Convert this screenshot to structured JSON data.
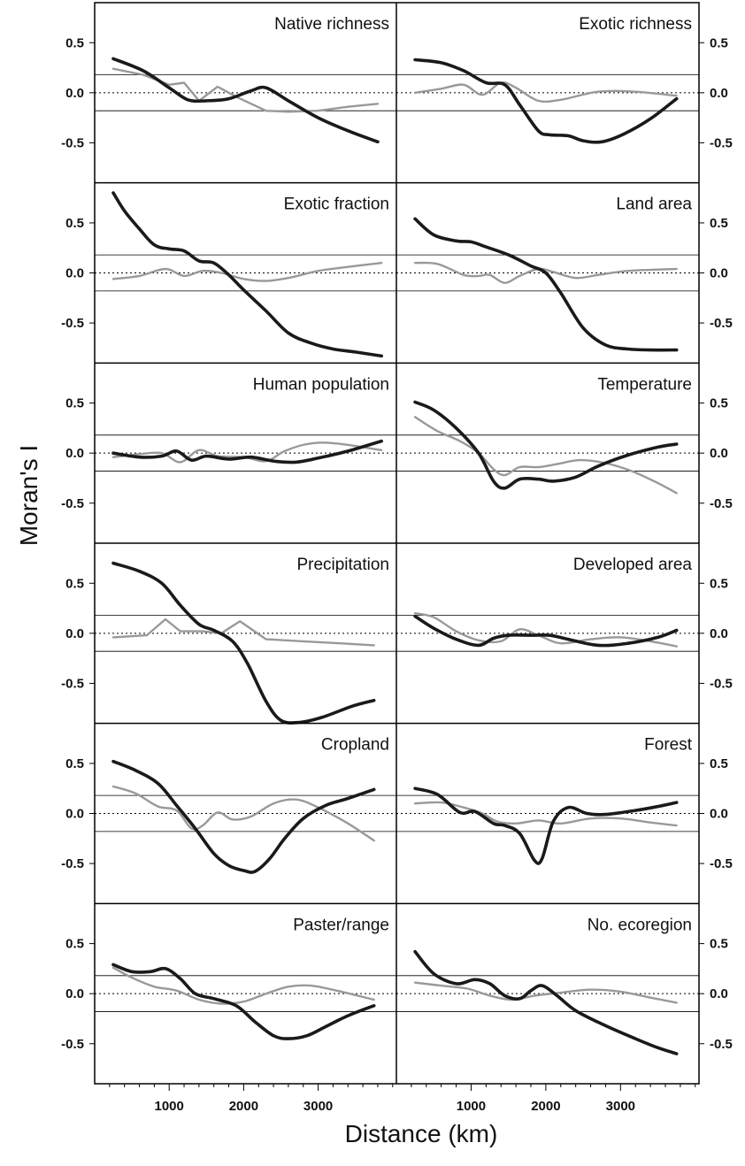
{
  "ylabel": "Moran's I",
  "xlabel": "Distance (km)",
  "x_ticks": [
    1000,
    2000,
    3000
  ],
  "y_ticks": [
    "0.5",
    "0.0",
    "-0.5"
  ],
  "colors": {
    "series_dark": "#1a1a1a",
    "series_gray": "#999999",
    "frame": "#000000"
  },
  "chart_data": {
    "type": "line",
    "layout": "small-multiples 6x2",
    "xlabel": "Distance (km)",
    "ylabel": "Moran's I",
    "xlim": [
      0,
      4050
    ],
    "ylim": [
      -0.9,
      0.9
    ],
    "x_ticks": [
      1000,
      2000,
      3000
    ],
    "y_ticks": [
      0.5,
      0.0,
      -0.5
    ],
    "reference_lines": {
      "dotted_at": 0.0,
      "solid_at": [
        0.18,
        -0.18
      ]
    },
    "grid": false,
    "legend": "none",
    "panels": [
      {
        "title": "Native richness",
        "series": [
          {
            "color": "dark",
            "x": [
              250,
              650,
              1000,
              1250,
              1500,
              1800,
              2100,
              2300,
              2600,
              3000,
              3400,
              3800
            ],
            "y": [
              0.34,
              0.22,
              0.05,
              -0.07,
              -0.08,
              -0.06,
              0.02,
              0.05,
              -0.08,
              -0.25,
              -0.38,
              -0.49
            ]
          },
          {
            "color": "gray",
            "smooth": false,
            "x": [
              250,
              650,
              1000,
              1200,
              1400,
              1650,
              1900,
              2300,
              2600,
              3000,
              3400,
              3800
            ],
            "y": [
              0.24,
              0.18,
              0.08,
              0.1,
              -0.08,
              0.06,
              -0.04,
              -0.18,
              -0.19,
              -0.18,
              -0.14,
              -0.11
            ]
          }
        ]
      },
      {
        "title": "Exotic richness",
        "series": [
          {
            "color": "dark",
            "x": [
              250,
              600,
              900,
              1200,
              1450,
              1650,
              1900,
              2050,
              2300,
              2500,
              2750,
              3050,
              3400,
              3750
            ],
            "y": [
              0.33,
              0.3,
              0.22,
              0.1,
              0.08,
              -0.12,
              -0.38,
              -0.42,
              -0.43,
              -0.48,
              -0.49,
              -0.41,
              -0.26,
              -0.06
            ]
          },
          {
            "color": "gray",
            "x": [
              250,
              600,
              900,
              1150,
              1400,
              1600,
              1900,
              2200,
              2700,
              3200,
              3750
            ],
            "y": [
              0.0,
              0.04,
              0.08,
              -0.02,
              0.1,
              0.05,
              -0.08,
              -0.07,
              0.01,
              0.01,
              -0.03
            ]
          }
        ]
      },
      {
        "title": "Exotic fraction",
        "series": [
          {
            "color": "dark",
            "x": [
              250,
              400,
              600,
              800,
              1000,
              1200,
              1400,
              1600,
              1800,
              2000,
              2300,
              2600,
              2900,
              3200,
              3500,
              3850
            ],
            "y": [
              0.8,
              0.62,
              0.44,
              0.28,
              0.24,
              0.22,
              0.12,
              0.1,
              -0.02,
              -0.17,
              -0.38,
              -0.6,
              -0.7,
              -0.76,
              -0.79,
              -0.83
            ]
          },
          {
            "color": "gray",
            "x": [
              250,
              600,
              950,
              1200,
              1450,
              1700,
              2000,
              2300,
              2600,
              3000,
              3400,
              3850
            ],
            "y": [
              -0.06,
              -0.03,
              0.04,
              -0.03,
              0.02,
              0.0,
              -0.06,
              -0.08,
              -0.05,
              0.02,
              0.06,
              0.1
            ]
          }
        ]
      },
      {
        "title": "Land area",
        "series": [
          {
            "color": "dark",
            "x": [
              250,
              500,
              800,
              1000,
              1200,
              1500,
              1800,
              2000,
              2200,
              2500,
              2800,
              3100,
              3400,
              3750
            ],
            "y": [
              0.54,
              0.38,
              0.32,
              0.31,
              0.26,
              0.18,
              0.07,
              0.0,
              -0.2,
              -0.55,
              -0.72,
              -0.76,
              -0.77,
              -0.77
            ]
          },
          {
            "color": "gray",
            "x": [
              250,
              550,
              900,
              1100,
              1250,
              1450,
              1650,
              1900,
              2100,
              2400,
              2700,
              3100,
              3750
            ],
            "y": [
              0.1,
              0.09,
              -0.02,
              -0.03,
              -0.02,
              -0.1,
              -0.03,
              0.04,
              0.01,
              -0.05,
              -0.02,
              0.02,
              0.04
            ]
          }
        ]
      },
      {
        "title": "Human population",
        "series": [
          {
            "color": "dark",
            "x": [
              250,
              600,
              900,
              1100,
              1300,
              1500,
              1800,
              2100,
              2400,
              2700,
              3000,
              3400,
              3850
            ],
            "y": [
              0.0,
              -0.04,
              -0.03,
              0.02,
              -0.07,
              -0.03,
              -0.06,
              -0.04,
              -0.08,
              -0.09,
              -0.05,
              0.02,
              0.12
            ]
          },
          {
            "color": "gray",
            "x": [
              250,
              600,
              900,
              1150,
              1400,
              1650,
              2000,
              2300,
              2550,
              2850,
              3200,
              3850
            ],
            "y": [
              -0.04,
              -0.01,
              0.0,
              -0.09,
              0.03,
              -0.03,
              -0.04,
              -0.08,
              0.02,
              0.09,
              0.1,
              0.03
            ]
          }
        ]
      },
      {
        "title": "Temperature",
        "series": [
          {
            "color": "dark",
            "x": [
              250,
              500,
              800,
              1100,
              1300,
              1450,
              1650,
              1900,
              2100,
              2400,
              2700,
              3100,
              3500,
              3750
            ],
            "y": [
              0.51,
              0.43,
              0.25,
              0.0,
              -0.28,
              -0.35,
              -0.26,
              -0.26,
              -0.28,
              -0.24,
              -0.13,
              -0.02,
              0.06,
              0.09
            ]
          },
          {
            "color": "gray",
            "x": [
              250,
              550,
              850,
              1100,
              1300,
              1450,
              1650,
              1900,
              2150,
              2450,
              2800,
              3150,
              3500,
              3750
            ],
            "y": [
              0.36,
              0.22,
              0.12,
              0.0,
              -0.16,
              -0.22,
              -0.14,
              -0.14,
              -0.11,
              -0.07,
              -0.1,
              -0.18,
              -0.3,
              -0.4
            ]
          }
        ]
      },
      {
        "title": "Precipitation",
        "series": [
          {
            "color": "dark",
            "x": [
              250,
              600,
              900,
              1150,
              1400,
              1600,
              1850,
              2050,
              2300,
              2500,
              2750,
              3050,
              3450,
              3750
            ],
            "y": [
              0.7,
              0.62,
              0.5,
              0.28,
              0.09,
              0.03,
              -0.08,
              -0.3,
              -0.68,
              -0.87,
              -0.89,
              -0.84,
              -0.73,
              -0.67
            ]
          },
          {
            "color": "gray",
            "smooth": false,
            "x": [
              250,
              700,
              950,
              1150,
              1450,
              1700,
              1950,
              2300,
              2800,
              3300,
              3750
            ],
            "y": [
              -0.04,
              -0.02,
              0.14,
              0.02,
              0.02,
              0.0,
              0.12,
              -0.06,
              -0.08,
              -0.1,
              -0.12
            ]
          }
        ]
      },
      {
        "title": "Developed area",
        "series": [
          {
            "color": "dark",
            "x": [
              250,
              500,
              800,
              1100,
              1300,
              1500,
              1800,
              2050,
              2300,
              2700,
              3100,
              3500,
              3750
            ],
            "y": [
              0.17,
              0.05,
              -0.06,
              -0.12,
              -0.05,
              -0.02,
              -0.02,
              -0.02,
              -0.06,
              -0.12,
              -0.1,
              -0.04,
              0.03
            ]
          },
          {
            "color": "gray",
            "x": [
              250,
              500,
              800,
              1100,
              1400,
              1650,
              1900,
              2200,
              2600,
              3000,
              3400,
              3750
            ],
            "y": [
              0.2,
              0.16,
              0.02,
              -0.07,
              -0.08,
              0.04,
              -0.02,
              -0.1,
              -0.06,
              -0.04,
              -0.08,
              -0.13
            ]
          }
        ]
      },
      {
        "title": "Cropland",
        "series": [
          {
            "color": "dark",
            "x": [
              250,
              550,
              850,
              1100,
              1350,
              1600,
              1800,
              2000,
              2150,
              2350,
              2550,
              2800,
              3100,
              3400,
              3750
            ],
            "y": [
              0.52,
              0.43,
              0.3,
              0.08,
              -0.15,
              -0.4,
              -0.52,
              -0.57,
              -0.58,
              -0.45,
              -0.25,
              -0.05,
              0.08,
              0.15,
              0.24
            ]
          },
          {
            "color": "gray",
            "x": [
              250,
              550,
              850,
              1100,
              1300,
              1450,
              1650,
              1850,
              2100,
              2400,
              2700,
              3000,
              3400,
              3750
            ],
            "y": [
              0.27,
              0.2,
              0.07,
              0.03,
              -0.15,
              -0.12,
              0.01,
              -0.06,
              -0.03,
              0.1,
              0.14,
              0.06,
              -0.1,
              -0.27
            ]
          }
        ]
      },
      {
        "title": "Forest",
        "series": [
          {
            "color": "dark",
            "x": [
              250,
              550,
              850,
              1050,
              1300,
              1450,
              1650,
              1850,
              1950,
              2100,
              2300,
              2550,
              2800,
              3200,
              3500,
              3750
            ],
            "y": [
              0.25,
              0.19,
              0.01,
              0.02,
              -0.1,
              -0.12,
              -0.2,
              -0.47,
              -0.45,
              -0.08,
              0.06,
              0.0,
              -0.01,
              0.03,
              0.07,
              0.11
            ]
          },
          {
            "color": "gray",
            "x": [
              250,
              600,
              900,
              1150,
              1350,
              1600,
              1900,
              2200,
              2600,
              3000,
              3400,
              3750
            ],
            "y": [
              0.1,
              0.11,
              0.06,
              0.0,
              -0.08,
              -0.1,
              -0.07,
              -0.1,
              -0.05,
              -0.05,
              -0.09,
              -0.12
            ]
          }
        ]
      },
      {
        "title": "Paster/range",
        "series": [
          {
            "color": "dark",
            "x": [
              250,
              500,
              750,
              950,
              1150,
              1350,
              1600,
              1900,
              2150,
              2400,
              2600,
              2850,
              3100,
              3400,
              3750
            ],
            "y": [
              0.29,
              0.22,
              0.22,
              0.25,
              0.15,
              0.0,
              -0.05,
              -0.12,
              -0.28,
              -0.42,
              -0.45,
              -0.42,
              -0.33,
              -0.22,
              -0.12
            ]
          },
          {
            "color": "gray",
            "x": [
              250,
              500,
              800,
              1100,
              1400,
              1700,
              2000,
              2300,
              2600,
              2900,
              3250,
              3750
            ],
            "y": [
              0.26,
              0.16,
              0.07,
              0.03,
              -0.06,
              -0.1,
              -0.08,
              0.0,
              0.07,
              0.08,
              0.03,
              -0.06
            ]
          }
        ]
      },
      {
        "title": "No. ecoregion",
        "series": [
          {
            "color": "dark",
            "x": [
              250,
              500,
              800,
              1050,
              1250,
              1450,
              1650,
              1800,
              1950,
              2150,
              2400,
              2800,
              3200,
              3500,
              3750
            ],
            "y": [
              0.42,
              0.2,
              0.1,
              0.14,
              0.1,
              -0.02,
              -0.05,
              0.03,
              0.08,
              -0.02,
              -0.17,
              -0.32,
              -0.45,
              -0.54,
              -0.6
            ]
          },
          {
            "color": "gray",
            "x": [
              250,
              600,
              950,
              1250,
              1550,
              1850,
              2200,
              2600,
              3000,
              3400,
              3750
            ],
            "y": [
              0.11,
              0.08,
              0.05,
              -0.02,
              -0.06,
              -0.02,
              0.01,
              0.04,
              0.02,
              -0.04,
              -0.09
            ]
          }
        ]
      }
    ]
  }
}
